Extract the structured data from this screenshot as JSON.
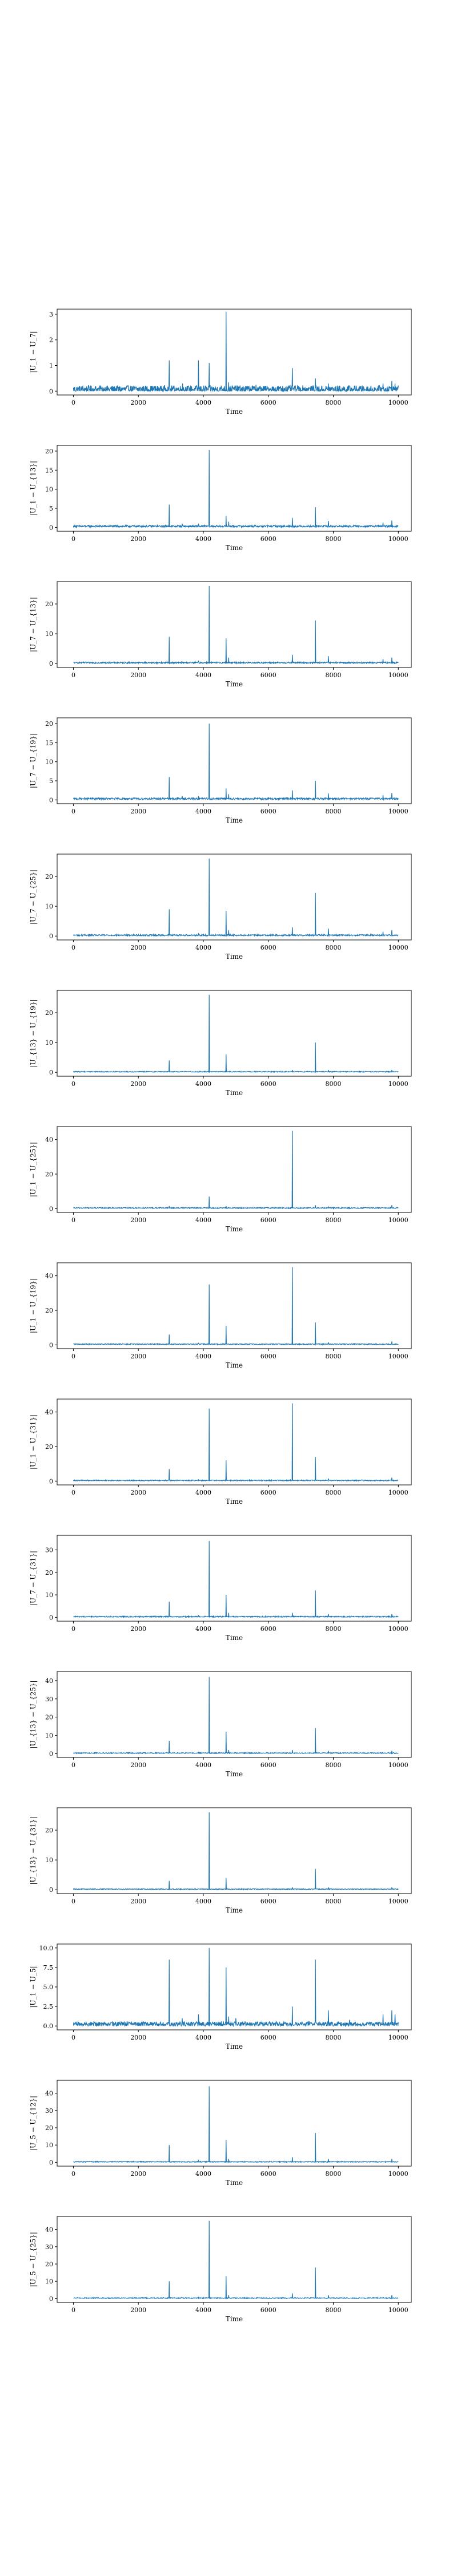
{
  "chart_data": [
    {
      "type": "line",
      "xlabel": "Time",
      "ylabel": "|U_1 − U_7|",
      "xlim": [
        -500,
        10400
      ],
      "ylim": [
        -0.15,
        3.2
      ],
      "xticks": [
        0,
        2000,
        4000,
        6000,
        8000,
        10000
      ],
      "yticks": [
        0,
        1,
        2,
        3
      ],
      "baseline": 0.07,
      "noise": 0.15,
      "spikes": [
        [
          2950,
          1.2
        ],
        [
          3360,
          0.3
        ],
        [
          3850,
          1.2
        ],
        [
          4180,
          1.1
        ],
        [
          4700,
          3.1
        ],
        [
          4780,
          0.35
        ],
        [
          5620,
          0.25
        ],
        [
          6740,
          0.9
        ],
        [
          7450,
          0.5
        ],
        [
          7850,
          0.3
        ],
        [
          9530,
          0.3
        ],
        [
          9800,
          0.4
        ],
        [
          9900,
          0.3
        ]
      ]
    },
    {
      "type": "line",
      "xlabel": "Time",
      "ylabel": "|U_1 − U_{13}|",
      "xlim": [
        -500,
        10400
      ],
      "ylim": [
        -1.0,
        21.5
      ],
      "xticks": [
        0,
        2000,
        4000,
        6000,
        8000,
        10000
      ],
      "yticks": [
        0,
        5,
        10,
        15,
        20
      ],
      "baseline": 0.3,
      "noise": 0.25,
      "spikes": [
        [
          2950,
          6.0
        ],
        [
          3350,
          1.0
        ],
        [
          3850,
          1.0
        ],
        [
          4180,
          20.3
        ],
        [
          4700,
          3.0
        ],
        [
          4780,
          1.5
        ],
        [
          6740,
          2.5
        ],
        [
          7450,
          5.3
        ],
        [
          7850,
          1.7
        ],
        [
          9530,
          1.3
        ],
        [
          9800,
          1.8
        ]
      ]
    },
    {
      "type": "line",
      "xlabel": "Time",
      "ylabel": "|U_7 − U_{13}|",
      "xlim": [
        -500,
        10400
      ],
      "ylim": [
        -1.3,
        27.5
      ],
      "xticks": [
        0,
        2000,
        4000,
        6000,
        8000,
        10000
      ],
      "yticks": [
        0,
        10,
        20
      ],
      "baseline": 0.3,
      "noise": 0.25,
      "spikes": [
        [
          2950,
          9.0
        ],
        [
          3850,
          1.0
        ],
        [
          4180,
          26.0
        ],
        [
          4700,
          8.5
        ],
        [
          4780,
          2.0
        ],
        [
          6740,
          3.0
        ],
        [
          7450,
          14.5
        ],
        [
          7850,
          2.5
        ],
        [
          9530,
          1.5
        ],
        [
          9800,
          2.0
        ]
      ]
    },
    {
      "type": "line",
      "xlabel": "Time",
      "ylabel": "|U_7 − U_{19}|",
      "xlim": [
        -500,
        10400
      ],
      "ylim": [
        -1.0,
        21.5
      ],
      "xticks": [
        0,
        2000,
        4000,
        6000,
        8000,
        10000
      ],
      "yticks": [
        0,
        5,
        10,
        15,
        20
      ],
      "baseline": 0.3,
      "noise": 0.25,
      "spikes": [
        [
          2950,
          6.0
        ],
        [
          3350,
          1.0
        ],
        [
          3850,
          1.0
        ],
        [
          4180,
          20.0
        ],
        [
          4700,
          3.0
        ],
        [
          4780,
          1.5
        ],
        [
          6740,
          2.5
        ],
        [
          7450,
          5.0
        ],
        [
          7850,
          1.7
        ],
        [
          9530,
          1.3
        ],
        [
          9800,
          1.8
        ]
      ]
    },
    {
      "type": "line",
      "xlabel": "Time",
      "ylabel": "|U_7 − U_{25}|",
      "xlim": [
        -500,
        10400
      ],
      "ylim": [
        -1.3,
        27.5
      ],
      "xticks": [
        0,
        2000,
        4000,
        6000,
        8000,
        10000
      ],
      "yticks": [
        0,
        10,
        20
      ],
      "baseline": 0.3,
      "noise": 0.25,
      "spikes": [
        [
          2950,
          9.0
        ],
        [
          3850,
          1.0
        ],
        [
          4180,
          26.0
        ],
        [
          4700,
          8.5
        ],
        [
          4780,
          2.0
        ],
        [
          6740,
          3.0
        ],
        [
          7450,
          14.5
        ],
        [
          7850,
          2.5
        ],
        [
          9530,
          1.5
        ],
        [
          9800,
          2.0
        ]
      ]
    },
    {
      "type": "line",
      "xlabel": "Time",
      "ylabel": "|U_{13} − U_{19}|",
      "xlim": [
        -500,
        10400
      ],
      "ylim": [
        -1.3,
        27.5
      ],
      "xticks": [
        0,
        2000,
        4000,
        6000,
        8000,
        10000
      ],
      "yticks": [
        0,
        10,
        20
      ],
      "baseline": 0.2,
      "noise": 0.15,
      "spikes": [
        [
          2950,
          4.0
        ],
        [
          4180,
          26.0
        ],
        [
          4700,
          6.0
        ],
        [
          6740,
          0.8
        ],
        [
          7450,
          10.0
        ],
        [
          7850,
          0.8
        ],
        [
          9800,
          0.8
        ]
      ]
    },
    {
      "type": "line",
      "xlabel": "Time",
      "ylabel": "|U_1 − U_{25}|",
      "xlim": [
        -500,
        10400
      ],
      "ylim": [
        -2.2,
        47.5
      ],
      "xticks": [
        0,
        2000,
        4000,
        6000,
        8000,
        10000
      ],
      "yticks": [
        0,
        20,
        40
      ],
      "baseline": 0.4,
      "noise": 0.3,
      "spikes": [
        [
          2950,
          1.5
        ],
        [
          4180,
          7.0
        ],
        [
          4700,
          1.5
        ],
        [
          6740,
          45.0
        ],
        [
          7450,
          2.0
        ],
        [
          7850,
          1.0
        ],
        [
          9800,
          2.0
        ]
      ]
    },
    {
      "type": "line",
      "xlabel": "Time",
      "ylabel": "|U_1 − U_{19}|",
      "xlim": [
        -500,
        10400
      ],
      "ylim": [
        -2.2,
        47.5
      ],
      "xticks": [
        0,
        2000,
        4000,
        6000,
        8000,
        10000
      ],
      "yticks": [
        0,
        20,
        40
      ],
      "baseline": 0.4,
      "noise": 0.3,
      "spikes": [
        [
          2950,
          6.0
        ],
        [
          3850,
          1.0
        ],
        [
          4180,
          35.0
        ],
        [
          4700,
          11.0
        ],
        [
          6740,
          45.0
        ],
        [
          7450,
          13.0
        ],
        [
          7850,
          1.5
        ],
        [
          9800,
          2.0
        ]
      ]
    },
    {
      "type": "line",
      "xlabel": "Time",
      "ylabel": "|U_1 − U_{31}|",
      "xlim": [
        -500,
        10400
      ],
      "ylim": [
        -2.2,
        47.5
      ],
      "xticks": [
        0,
        2000,
        4000,
        6000,
        8000,
        10000
      ],
      "yticks": [
        0,
        20,
        40
      ],
      "baseline": 0.4,
      "noise": 0.3,
      "spikes": [
        [
          2950,
          7.0
        ],
        [
          3850,
          1.0
        ],
        [
          4180,
          42.0
        ],
        [
          4700,
          12.0
        ],
        [
          6740,
          45.0
        ],
        [
          7450,
          14.0
        ],
        [
          7850,
          1.5
        ],
        [
          9800,
          2.0
        ]
      ]
    },
    {
      "type": "line",
      "xlabel": "Time",
      "ylabel": "|U_7 − U_{31}|",
      "xlim": [
        -500,
        10400
      ],
      "ylim": [
        -1.7,
        36.5
      ],
      "xticks": [
        0,
        2000,
        4000,
        6000,
        8000,
        10000
      ],
      "yticks": [
        0,
        10,
        20,
        30
      ],
      "baseline": 0.3,
      "noise": 0.25,
      "spikes": [
        [
          2950,
          7.0
        ],
        [
          3850,
          1.0
        ],
        [
          4180,
          34.0
        ],
        [
          4700,
          10.0
        ],
        [
          4780,
          2.0
        ],
        [
          6740,
          2.0
        ],
        [
          7450,
          12.0
        ],
        [
          7850,
          1.5
        ],
        [
          9800,
          1.5
        ]
      ]
    },
    {
      "type": "line",
      "xlabel": "Time",
      "ylabel": "|U_{13} − U_{25}|",
      "xlim": [
        -500,
        10400
      ],
      "ylim": [
        -2.1,
        45.0
      ],
      "xticks": [
        0,
        2000,
        4000,
        6000,
        8000,
        10000
      ],
      "yticks": [
        0,
        10,
        20,
        30,
        40
      ],
      "baseline": 0.3,
      "noise": 0.25,
      "spikes": [
        [
          2950,
          7.0
        ],
        [
          3850,
          1.0
        ],
        [
          4180,
          42.0
        ],
        [
          4700,
          12.0
        ],
        [
          4780,
          2.0
        ],
        [
          6740,
          2.0
        ],
        [
          7450,
          14.0
        ],
        [
          7850,
          1.5
        ],
        [
          9800,
          1.5
        ]
      ]
    },
    {
      "type": "line",
      "xlabel": "Time",
      "ylabel": "|U_{13} − U_{31}|",
      "xlim": [
        -500,
        10400
      ],
      "ylim": [
        -1.3,
        27.5
      ],
      "xticks": [
        0,
        2000,
        4000,
        6000,
        8000,
        10000
      ],
      "yticks": [
        0,
        10,
        20
      ],
      "baseline": 0.2,
      "noise": 0.15,
      "spikes": [
        [
          2950,
          3.0
        ],
        [
          4180,
          26.0
        ],
        [
          4700,
          4.0
        ],
        [
          6740,
          0.8
        ],
        [
          7450,
          7.0
        ],
        [
          7850,
          0.8
        ],
        [
          9800,
          0.8
        ]
      ]
    },
    {
      "type": "line",
      "xlabel": "Time",
      "ylabel": "|U_1 − U_5|",
      "xlim": [
        -500,
        10400
      ],
      "ylim": [
        -0.5,
        10.5
      ],
      "xticks": [
        0,
        2000,
        4000,
        6000,
        8000,
        10000
      ],
      "yticks": [
        0.0,
        2.5,
        5.0,
        7.5,
        10.0
      ],
      "baseline": 0.25,
      "noise": 0.3,
      "spikes": [
        [
          2950,
          8.5
        ],
        [
          3350,
          1.0
        ],
        [
          3850,
          1.5
        ],
        [
          4180,
          10.0
        ],
        [
          4700,
          7.5
        ],
        [
          4780,
          1.2
        ],
        [
          5000,
          1.0
        ],
        [
          6740,
          2.5
        ],
        [
          7450,
          8.5
        ],
        [
          7850,
          2.0
        ],
        [
          8500,
          0.8
        ],
        [
          9530,
          1.5
        ],
        [
          9800,
          2.0
        ],
        [
          9900,
          1.5
        ]
      ]
    },
    {
      "type": "line",
      "xlabel": "Time",
      "ylabel": "|U_5 − U_{12}|",
      "xlim": [
        -500,
        10400
      ],
      "ylim": [
        -2.2,
        47.5
      ],
      "xticks": [
        0,
        2000,
        4000,
        6000,
        8000,
        10000
      ],
      "yticks": [
        0,
        10,
        20,
        30,
        40
      ],
      "baseline": 0.3,
      "noise": 0.25,
      "spikes": [
        [
          2950,
          10.0
        ],
        [
          3850,
          1.0
        ],
        [
          4180,
          44.0
        ],
        [
          4700,
          13.0
        ],
        [
          4780,
          2.0
        ],
        [
          6740,
          3.0
        ],
        [
          7450,
          17.0
        ],
        [
          7850,
          2.0
        ],
        [
          9800,
          2.0
        ]
      ]
    },
    {
      "type": "line",
      "xlabel": "Time",
      "ylabel": "|U_5 − U_{25}|",
      "xlim": [
        -500,
        10400
      ],
      "ylim": [
        -2.2,
        47.5
      ],
      "xticks": [
        0,
        2000,
        4000,
        6000,
        8000,
        10000
      ],
      "yticks": [
        0,
        10,
        20,
        30,
        40
      ],
      "baseline": 0.3,
      "noise": 0.25,
      "spikes": [
        [
          2950,
          10.0
        ],
        [
          3850,
          1.0
        ],
        [
          4180,
          45.0
        ],
        [
          4700,
          13.0
        ],
        [
          4780,
          2.0
        ],
        [
          6740,
          3.0
        ],
        [
          7450,
          18.0
        ],
        [
          7850,
          2.0
        ],
        [
          9800,
          2.0
        ]
      ]
    }
  ]
}
